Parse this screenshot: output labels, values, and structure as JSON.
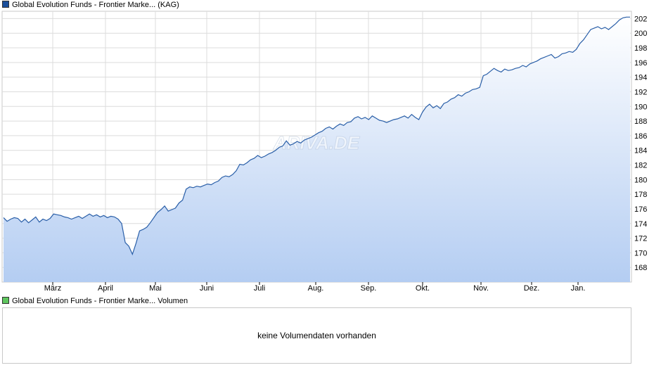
{
  "chart_data": [
    {
      "type": "area",
      "legend": "Global Evolution Funds - Frontier Marke... (KAG)",
      "legend_placement": "top-left",
      "watermark": "ARIVA.DE",
      "grid": true,
      "y_axis_side": "right",
      "ylim": [
        166,
        203
      ],
      "yticks": [
        168,
        170,
        172,
        174,
        176,
        178,
        180,
        182,
        184,
        186,
        188,
        190,
        192,
        194,
        196,
        198,
        200,
        202
      ],
      "month_labels": [
        "März",
        "April",
        "Mai",
        "Juni",
        "Juli",
        "Aug.",
        "Sep.",
        "Okt.",
        "Nov.",
        "Dez.",
        "Jan."
      ],
      "colors": {
        "line": "#2a5fa8",
        "fill_top": "#ffffff",
        "fill_bottom": "#b4cdf2",
        "grid": "#dcdcdc"
      },
      "series": [
        {
          "values": [
            174.8,
            174.3,
            174.6,
            174.8,
            174.7,
            174.2,
            174.6,
            174.1,
            174.5,
            174.9,
            174.2,
            174.6,
            174.4,
            174.7,
            175.3,
            175.2,
            175.1,
            174.9,
            174.8,
            174.6,
            174.8,
            175.0,
            174.7,
            175.0,
            175.3,
            175.0,
            175.2,
            174.9,
            175.1,
            174.8,
            175.0,
            174.9,
            174.6,
            174.0,
            171.4,
            170.9,
            169.8,
            171.3,
            173.0,
            173.2,
            173.5,
            174.1,
            174.8,
            175.5,
            175.9,
            176.4,
            175.7,
            175.9,
            176.1,
            176.8,
            177.2,
            178.7,
            179.0,
            178.9,
            179.1,
            179.0,
            179.2,
            179.4,
            179.3,
            179.6,
            179.8,
            180.3,
            180.5,
            180.4,
            180.7,
            181.2,
            182.1,
            182.0,
            182.3,
            182.7,
            182.9,
            183.3,
            183.0,
            183.2,
            183.5,
            183.7,
            184.0,
            184.4,
            184.6,
            185.3,
            184.7,
            184.9,
            185.2,
            185.0,
            185.4,
            185.6,
            185.8,
            186.1,
            186.4,
            186.6,
            187.0,
            187.2,
            186.9,
            187.3,
            187.6,
            187.4,
            187.8,
            187.9,
            188.4,
            188.6,
            188.3,
            188.5,
            188.2,
            188.7,
            188.4,
            188.1,
            188.0,
            187.8,
            188.0,
            188.2,
            188.3,
            188.5,
            188.7,
            188.4,
            188.9,
            188.5,
            188.2,
            189.2,
            189.9,
            190.3,
            189.8,
            190.1,
            189.7,
            190.4,
            190.6,
            191.0,
            191.2,
            191.6,
            191.4,
            191.8,
            192.0,
            192.3,
            192.4,
            192.6,
            194.2,
            194.4,
            194.8,
            195.2,
            194.9,
            194.7,
            195.1,
            194.9,
            195.0,
            195.2,
            195.3,
            195.6,
            195.4,
            195.8,
            196.0,
            196.2,
            196.5,
            196.7,
            196.9,
            197.1,
            196.6,
            196.8,
            197.2,
            197.3,
            197.5,
            197.4,
            197.8,
            198.6,
            199.1,
            199.8,
            200.5,
            200.7,
            200.9,
            200.6,
            200.8,
            200.5,
            200.9,
            201.3,
            201.8,
            202.1,
            202.2,
            202.2
          ]
        }
      ]
    },
    {
      "type": "bar",
      "legend": "Global Evolution Funds - Frontier Marke... Volumen",
      "legend_placement": "top-left",
      "message": "keine Volumendaten vorhanden"
    }
  ]
}
